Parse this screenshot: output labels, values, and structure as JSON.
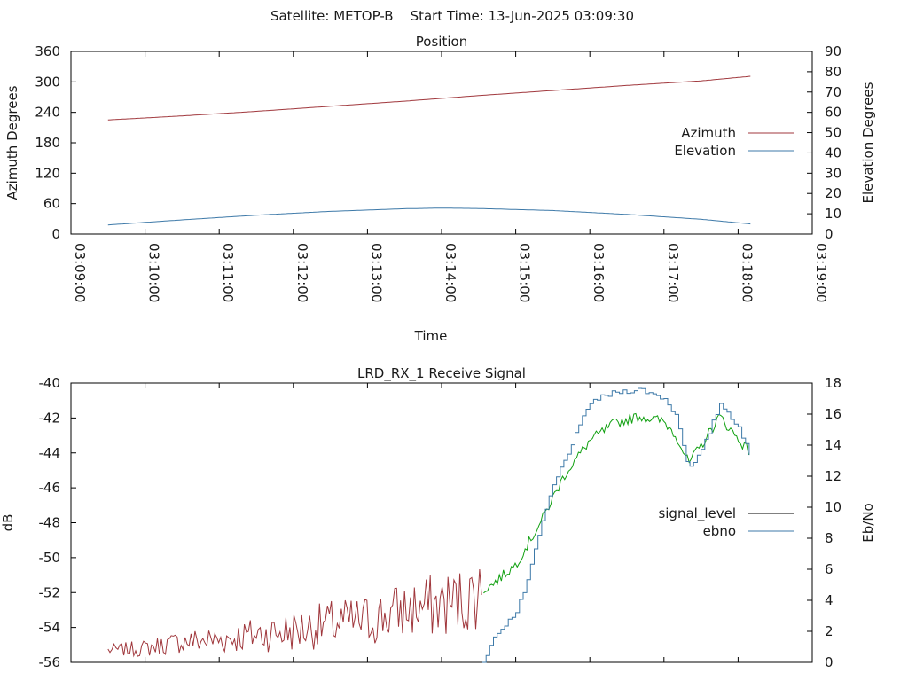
{
  "header": {
    "title": "Satellite: METOP-B    Start Time: 13-Jun-2025 03:09:30"
  },
  "colors": {
    "azimuth": "#a0373c",
    "elevation": "#3d79a8",
    "signal_level_legend": "#000000",
    "signal_low": "#a0373c",
    "signal_high": "#10a010",
    "ebno": "#3d79a8",
    "axis": "#000000"
  },
  "chart_data": [
    {
      "type": "line",
      "title": "Position",
      "xlabel": "Time",
      "ylabel": "Azimuth Degrees",
      "y2label": "Elevation Degrees",
      "xlim": [
        "03:09:00",
        "03:19:00"
      ],
      "xticks": [
        "03:09:00",
        "03:10:00",
        "03:11:00",
        "03:12:00",
        "03:13:00",
        "03:14:00",
        "03:15:00",
        "03:16:00",
        "03:17:00",
        "03:18:00",
        "03:19:00"
      ],
      "ylim": [
        0,
        360
      ],
      "yticks": [
        "0",
        "60",
        "120",
        "180",
        "240",
        "300",
        "360"
      ],
      "y2lim": [
        0,
        90
      ],
      "y2ticks": [
        "0",
        "10",
        "20",
        "30",
        "40",
        "50",
        "60",
        "70",
        "80",
        "90"
      ],
      "legend": "right",
      "series": [
        {
          "name": "Azimuth",
          "axis": "y",
          "x": [
            "03:09:30",
            "03:10:30",
            "03:11:30",
            "03:12:30",
            "03:13:30",
            "03:14:30",
            "03:15:30",
            "03:16:30",
            "03:17:30",
            "03:18:10"
          ],
          "values": [
            225,
            233,
            242,
            252,
            262,
            273,
            283,
            293,
            302,
            311
          ]
        },
        {
          "name": "Elevation",
          "axis": "y2",
          "x": [
            "03:09:30",
            "03:10:30",
            "03:11:30",
            "03:12:30",
            "03:13:30",
            "03:14:00",
            "03:14:30",
            "03:15:30",
            "03:16:30",
            "03:17:30",
            "03:18:10"
          ],
          "values": [
            4.5,
            7.0,
            9.3,
            11.2,
            12.5,
            12.8,
            12.6,
            11.6,
            9.7,
            7.3,
            5.0
          ]
        }
      ]
    },
    {
      "type": "line",
      "title": "LRD_RX_1 Receive Signal",
      "ylabel": "dB",
      "y2label": "Eb/No",
      "xlim": [
        "03:09:00",
        "03:19:00"
      ],
      "ylim": [
        -56,
        -40
      ],
      "yticks": [
        "-40",
        "-42",
        "-44",
        "-46",
        "-48",
        "-50",
        "-52",
        "-54",
        "-56"
      ],
      "y2lim": [
        0,
        18
      ],
      "y2ticks": [
        "0",
        "2",
        "4",
        "6",
        "8",
        "10",
        "12",
        "14",
        "16",
        "18"
      ],
      "legend": "right",
      "series": [
        {
          "name": "signal_level",
          "axis": "y",
          "x": [
            "03:09:30",
            "03:10:00",
            "03:10:30",
            "03:11:00",
            "03:11:30",
            "03:12:00",
            "03:12:30",
            "03:13:00",
            "03:13:30",
            "03:14:00",
            "03:14:20",
            "03:14:40",
            "03:15:00",
            "03:15:20",
            "03:15:40",
            "03:16:00",
            "03:16:20",
            "03:16:40",
            "03:17:00",
            "03:17:10",
            "03:17:20",
            "03:17:30",
            "03:17:45",
            "03:18:00",
            "03:18:10"
          ],
          "values": [
            -55.3,
            -55.2,
            -54.8,
            -54.7,
            -54.4,
            -54.2,
            -53.8,
            -53.6,
            -53.0,
            -52.7,
            -52.4,
            -51.6,
            -50.4,
            -48.0,
            -45.2,
            -43.3,
            -42.3,
            -41.9,
            -42.2,
            -43.0,
            -44.6,
            -43.6,
            -41.9,
            -43.2,
            -44.0
          ]
        },
        {
          "name": "ebno",
          "axis": "y2",
          "x": [
            "03:14:33",
            "03:14:45",
            "03:15:00",
            "03:15:10",
            "03:15:20",
            "03:15:30",
            "03:15:40",
            "03:15:50",
            "03:16:00",
            "03:16:20",
            "03:16:40",
            "03:17:00",
            "03:17:10",
            "03:17:20",
            "03:17:30",
            "03:17:45",
            "03:18:00",
            "03:18:10"
          ],
          "values": [
            0,
            2,
            3.2,
            5.5,
            8.8,
            11.4,
            13.2,
            15.0,
            16.8,
            17.4,
            17.6,
            17.0,
            15.8,
            12.4,
            13.6,
            16.7,
            15.2,
            13.1
          ]
        }
      ]
    }
  ]
}
